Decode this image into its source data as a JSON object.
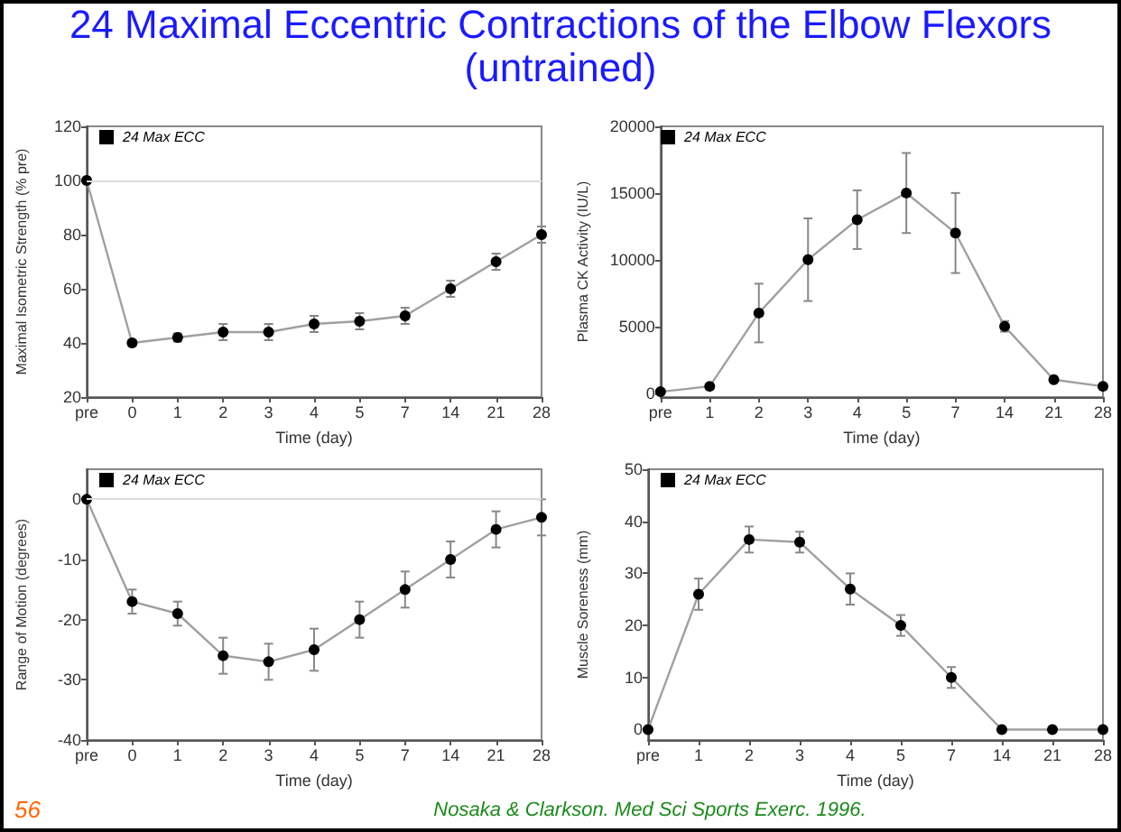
{
  "chart_data": [
    {
      "type": "line",
      "title": "24 Maximal Eccentric Contractions of the Elbow Flexors (untrained)",
      "xlabel": "Time (day)",
      "ylabel": "Maximal Isometric Strength (% pre)",
      "categories": [
        "pre",
        "0",
        "1",
        "2",
        "3",
        "4",
        "5",
        "7",
        "14",
        "21",
        "28"
      ],
      "series": [
        {
          "name": "24 Max ECC",
          "color": "#000000",
          "values": [
            100,
            40,
            42,
            44,
            44,
            47,
            48,
            50,
            60,
            70,
            80
          ],
          "errors": [
            null,
            1,
            1.5,
            3,
            3,
            3,
            3,
            3,
            3,
            3,
            3
          ]
        }
      ],
      "ylim": [
        20,
        120
      ],
      "yticks": [
        20,
        40,
        60,
        80,
        100,
        120
      ],
      "ref_lines": [
        {
          "axis": "y",
          "value": 100,
          "color": "#dddddd"
        }
      ],
      "legend": "top left",
      "marker": "circle",
      "grid": false
    },
    {
      "type": "line",
      "xlabel": "Time (day)",
      "ylabel": "Plasma CK Activity (IU/L)",
      "categories": [
        "pre",
        "1",
        "2",
        "3",
        "4",
        "5",
        "7",
        "14",
        "21",
        "28"
      ],
      "series": [
        {
          "name": "24 Max ECC",
          "color": "#000000",
          "values": [
            100,
            500,
            6000,
            10000,
            13000,
            15000,
            12000,
            5000,
            1000,
            500
          ],
          "errors": [
            null,
            null,
            2200,
            3100,
            2200,
            3000,
            3000,
            400,
            null,
            null
          ]
        }
      ],
      "ylim": [
        -300,
        20000
      ],
      "yticks": [
        0,
        5000,
        10000,
        15000,
        20000
      ],
      "legend": "top left",
      "marker": "circle",
      "grid": false
    },
    {
      "type": "line",
      "xlabel": "Time (day)",
      "ylabel": "Range of Motion (degrees)",
      "categories": [
        "pre",
        "0",
        "1",
        "2",
        "3",
        "4",
        "5",
        "7",
        "14",
        "21",
        "28"
      ],
      "series": [
        {
          "name": "24 Max ECC",
          "color": "#000000",
          "values": [
            0,
            -17,
            -19,
            -26,
            -27,
            -25,
            -20,
            -15,
            -10,
            -5,
            -3
          ],
          "errors": [
            null,
            2,
            2,
            3,
            3,
            3.5,
            3,
            3,
            3,
            3,
            3
          ]
        }
      ],
      "ylim": [
        -40,
        5
      ],
      "yticks": [
        -40,
        -30,
        -20,
        -10,
        0
      ],
      "ref_lines": [
        {
          "axis": "y",
          "value": 0,
          "color": "#dddddd"
        }
      ],
      "legend": "top left",
      "marker": "circle",
      "grid": false
    },
    {
      "type": "line",
      "xlabel": "Time (day)",
      "ylabel": "Muscle Soreness (mm)",
      "categories": [
        "pre",
        "1",
        "2",
        "3",
        "4",
        "5",
        "7",
        "14",
        "21",
        "28"
      ],
      "series": [
        {
          "name": "24 Max ECC",
          "color": "#000000",
          "values": [
            0,
            26,
            36.5,
            36,
            27,
            20,
            10,
            0,
            0,
            0
          ],
          "errors": [
            null,
            3,
            2.5,
            2,
            3,
            2,
            2,
            null,
            null,
            null
          ]
        }
      ],
      "ylim": [
        -2,
        50
      ],
      "yticks": [
        0,
        10,
        20,
        30,
        40,
        50
      ],
      "legend": "top left",
      "marker": "circle",
      "grid": false,
      "annotations": [
        "56",
        "Nosaka & Clarkson. Med Sci Sports Exerc. 1996."
      ]
    }
  ]
}
